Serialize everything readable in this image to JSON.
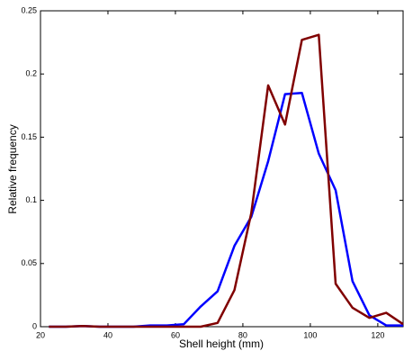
{
  "chart_data": {
    "type": "line",
    "x_label": "Shell height (mm)",
    "y_label": "Relative frequency",
    "x": [
      22.5,
      27.5,
      32.5,
      37.5,
      42.5,
      47.5,
      52.5,
      57.5,
      62.5,
      67.5,
      72.5,
      77.5,
      82.5,
      87.5,
      92.5,
      97.5,
      102.5,
      107.5,
      112.5,
      117.5,
      122.5,
      127.5
    ],
    "series": [
      {
        "color": "#0000ff",
        "values": [
          0,
          0,
          0.0005,
          0,
          0,
          0,
          0.001,
          0.001,
          0.002,
          0.016,
          0.028,
          0.064,
          0.087,
          0.131,
          0.184,
          0.185,
          0.137,
          0.108,
          0.036,
          0.009,
          0.001,
          0.001
        ]
      },
      {
        "color": "#800000",
        "values": [
          0,
          0,
          0.0005,
          0,
          0,
          0,
          0,
          0,
          0,
          0,
          0.003,
          0.029,
          0.09,
          0.191,
          0.16,
          0.227,
          0.231,
          0.034,
          0.015,
          0.007,
          0.011,
          0.002
        ]
      }
    ],
    "xlim": [
      20,
      127.5
    ],
    "xticks": [
      20,
      40,
      60,
      80,
      100,
      120
    ],
    "ylim": [
      0,
      0.25
    ],
    "yticks": [
      0,
      0.05,
      0.1,
      0.15,
      0.2,
      0.25
    ],
    "grid": false
  }
}
